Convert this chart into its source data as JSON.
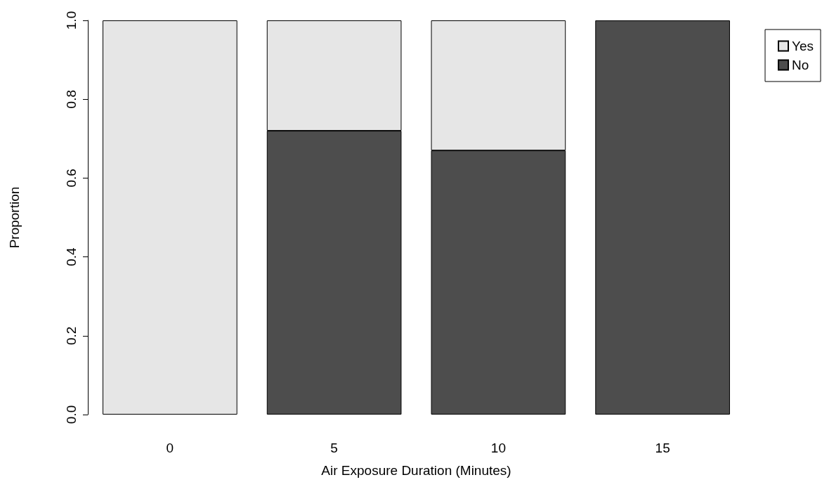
{
  "chart_data": {
    "type": "bar",
    "xlabel": "Air Exposure Duration (Minutes)",
    "ylabel": "Proportion",
    "categories": [
      "0",
      "5",
      "10",
      "15"
    ],
    "stacked": true,
    "series": [
      {
        "name": "No",
        "color": "#4d4d4d",
        "values": [
          0,
          0.72,
          0.67,
          1
        ]
      },
      {
        "name": "Yes",
        "color": "#e6e6e6",
        "values": [
          1,
          0.28,
          0.33,
          0
        ]
      }
    ],
    "ylim": [
      0,
      1
    ],
    "yticks": [
      {
        "value": 0,
        "label": "0.0"
      },
      0.2,
      0.4,
      0.6,
      0.8,
      {
        "value": 1,
        "label": "1.0"
      }
    ],
    "grid": false,
    "legend": "top right"
  }
}
